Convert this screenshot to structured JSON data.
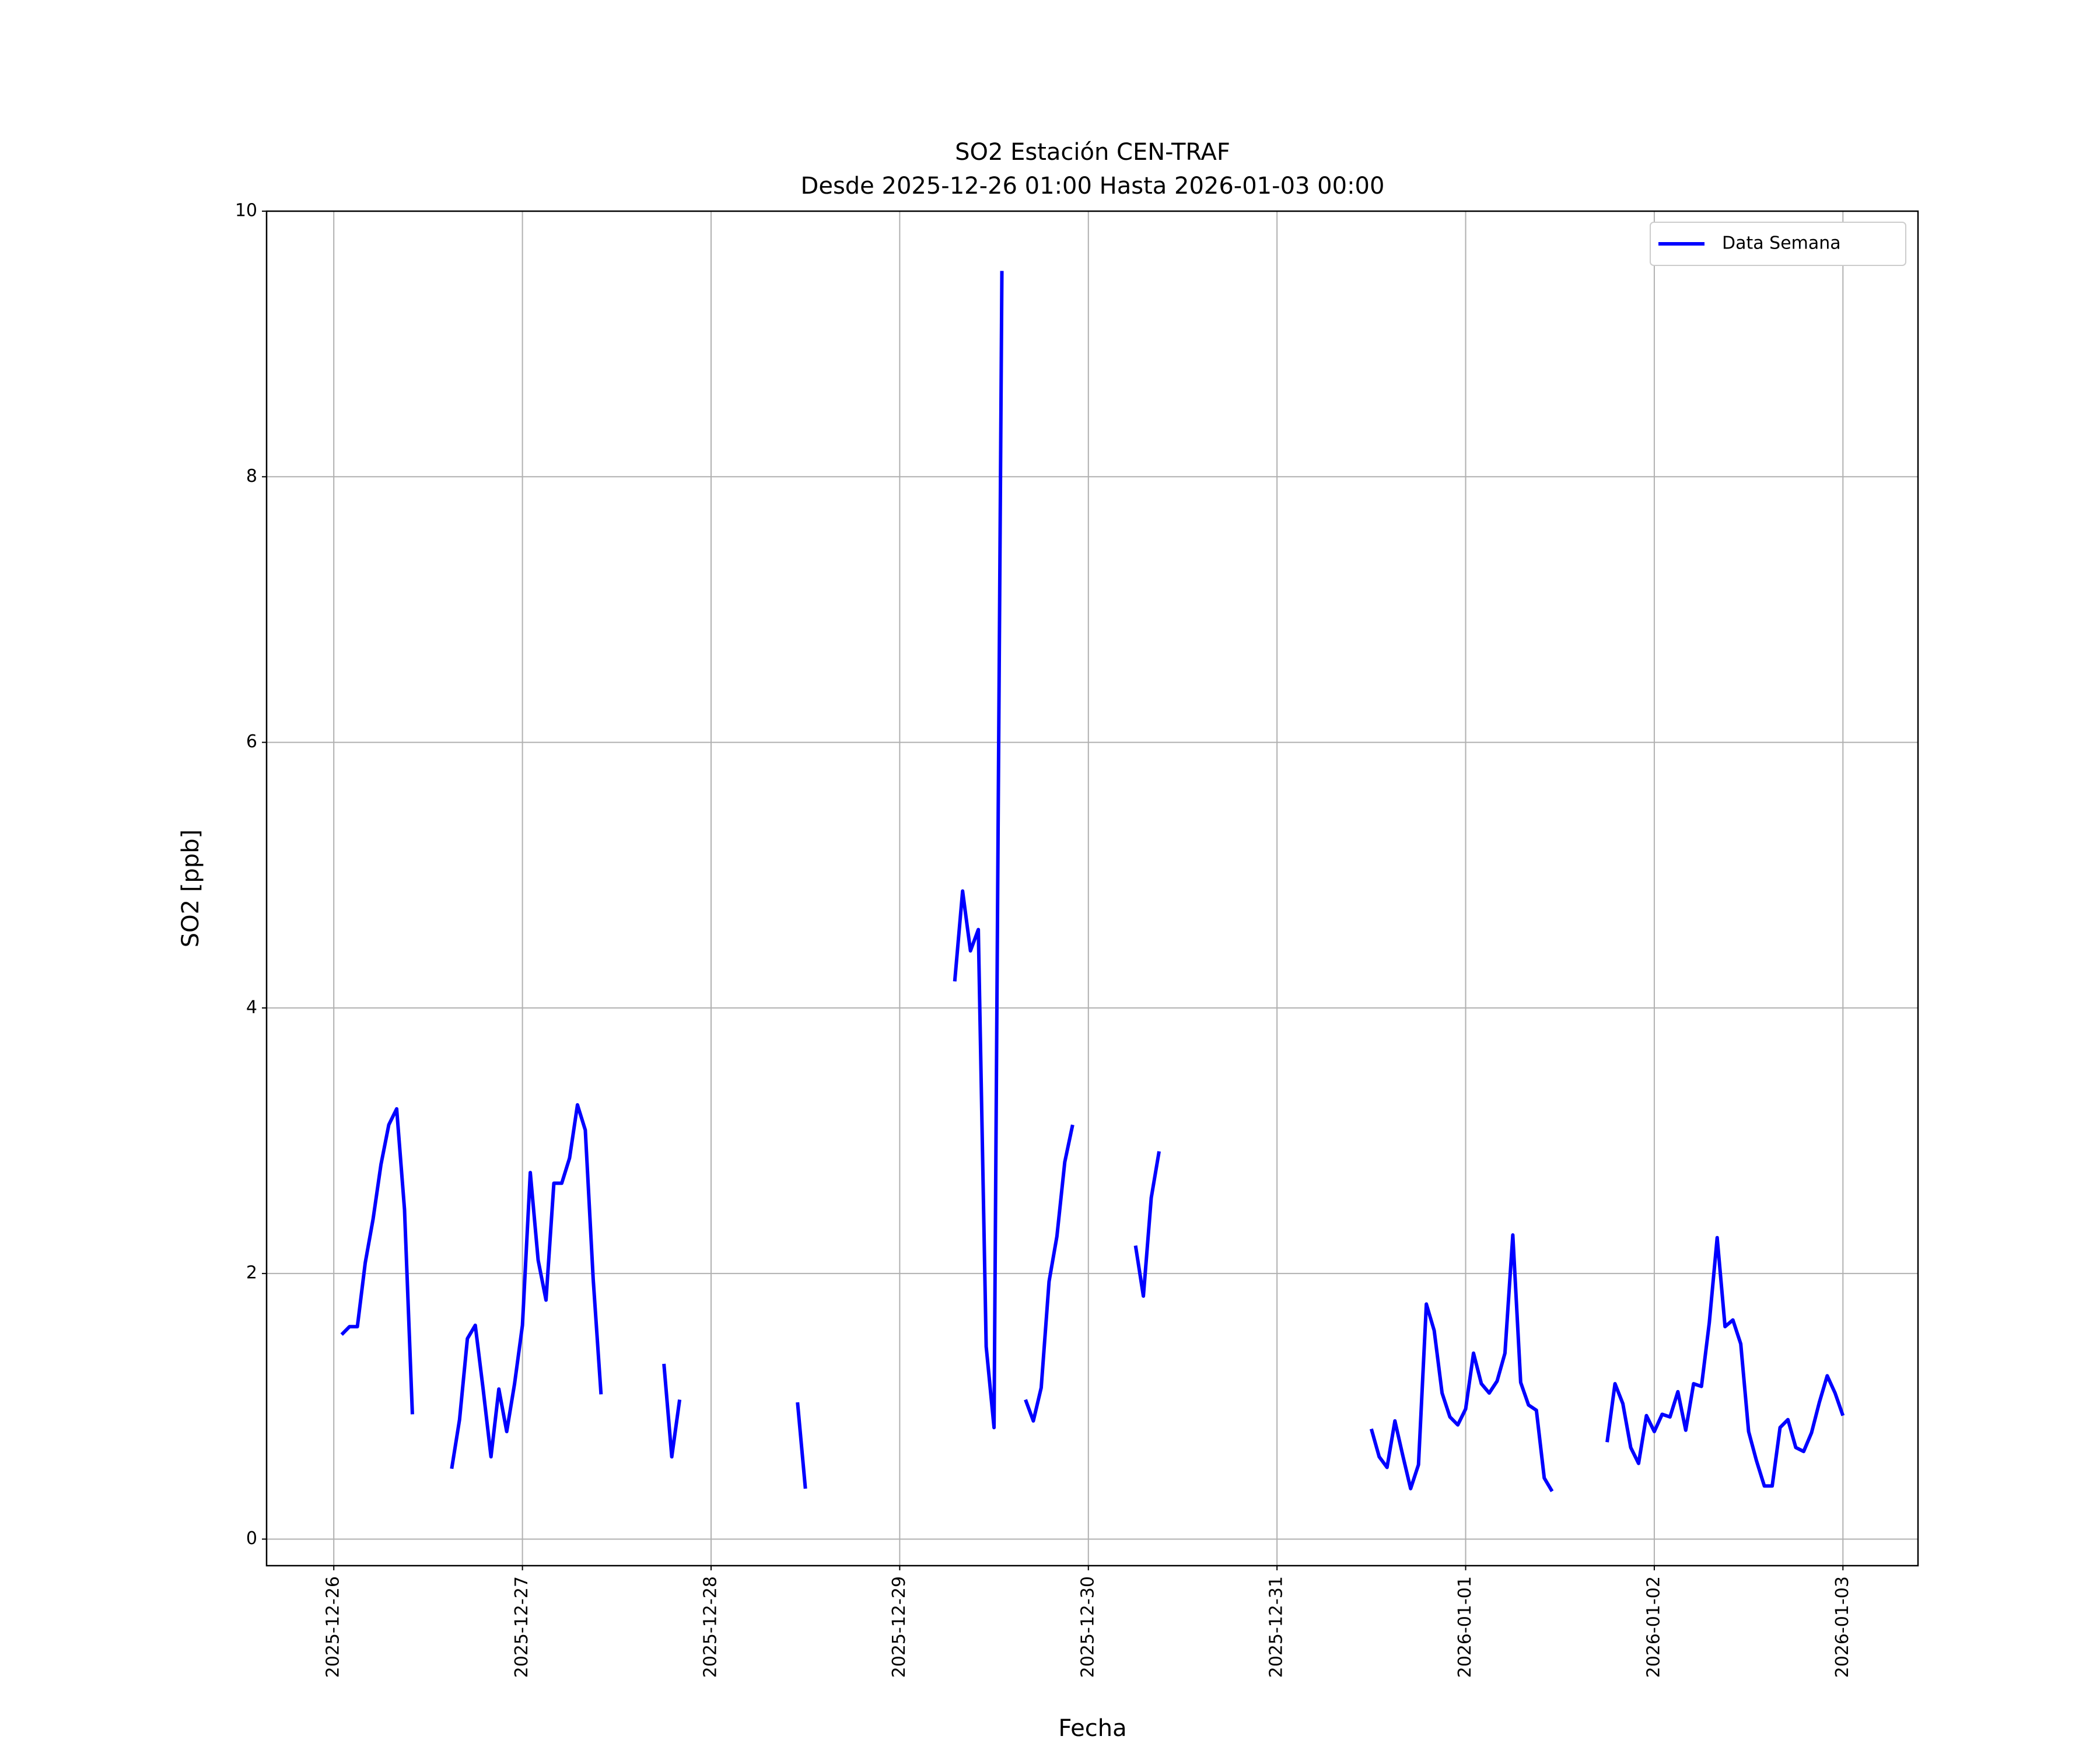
{
  "chart_data": {
    "type": "line",
    "title": "SO2 Estación CEN-TRAF",
    "subtitle": "Desde 2025-12-26 01:00 Hasta 2026-01-03 00:00",
    "xlabel": "Fecha",
    "ylabel": "SO2 [ppb]",
    "x": [
      "2025-12-26 01:00",
      "2025-12-26 02:00",
      "2025-12-26 03:00",
      "2025-12-26 04:00",
      "2025-12-26 05:00",
      "2025-12-26 06:00",
      "2025-12-26 07:00",
      "2025-12-26 08:00",
      "2025-12-26 09:00",
      "2025-12-26 10:00",
      "2025-12-26 11:00",
      "2025-12-26 15:00",
      "2025-12-26 16:00",
      "2025-12-26 17:00",
      "2025-12-26 18:00",
      "2025-12-26 19:00",
      "2025-12-26 20:00",
      "2025-12-26 21:00",
      "2025-12-26 22:00",
      "2025-12-26 23:00",
      "2025-12-27 00:00",
      "2025-12-27 01:00",
      "2025-12-27 02:00",
      "2025-12-27 03:00",
      "2025-12-27 04:00",
      "2025-12-27 05:00",
      "2025-12-27 06:00",
      "2025-12-27 07:00",
      "2025-12-27 08:00",
      "2025-12-27 09:00",
      "2025-12-27 10:00",
      "2025-12-27 11:00",
      "2025-12-27 18:00",
      "2025-12-27 19:00",
      "2025-12-27 20:00",
      "2025-12-27 21:00",
      "2025-12-28 11:00",
      "2025-12-28 12:00",
      "2025-12-28 13:00",
      "2025-12-29 07:00",
      "2025-12-29 08:00",
      "2025-12-29 09:00",
      "2025-12-29 10:00",
      "2025-12-29 11:00",
      "2025-12-29 12:00",
      "2025-12-29 13:00",
      "2025-12-29 14:00",
      "2025-12-29 16:00",
      "2025-12-29 17:00",
      "2025-12-29 18:00",
      "2025-12-29 19:00",
      "2025-12-29 20:00",
      "2025-12-29 21:00",
      "2025-12-29 22:00",
      "2025-12-29 23:00",
      "2025-12-30 06:00",
      "2025-12-30 07:00",
      "2025-12-30 08:00",
      "2025-12-30 09:00",
      "2025-12-30 10:00",
      "2025-12-31 12:00",
      "2025-12-31 13:00",
      "2025-12-31 14:00",
      "2025-12-31 15:00",
      "2025-12-31 16:00",
      "2025-12-31 17:00",
      "2025-12-31 18:00",
      "2025-12-31 19:00",
      "2025-12-31 20:00",
      "2025-12-31 21:00",
      "2025-12-31 22:00",
      "2025-12-31 23:00",
      "2026-01-01 00:00",
      "2026-01-01 01:00",
      "2026-01-01 02:00",
      "2026-01-01 03:00",
      "2026-01-01 04:00",
      "2026-01-01 05:00",
      "2026-01-01 06:00",
      "2026-01-01 07:00",
      "2026-01-01 08:00",
      "2026-01-01 09:00",
      "2026-01-01 10:00",
      "2026-01-01 11:00",
      "2026-01-01 12:00",
      "2026-01-01 18:00",
      "2026-01-01 19:00",
      "2026-01-01 20:00",
      "2026-01-01 21:00",
      "2026-01-01 22:00",
      "2026-01-01 23:00",
      "2026-01-02 00:00",
      "2026-01-02 01:00",
      "2026-01-02 02:00",
      "2026-01-02 03:00",
      "2026-01-02 04:00",
      "2026-01-02 05:00",
      "2026-01-02 06:00",
      "2026-01-02 07:00",
      "2026-01-02 08:00",
      "2026-01-02 09:00",
      "2026-01-02 10:00",
      "2026-01-02 11:00",
      "2026-01-02 12:00",
      "2026-01-02 13:00",
      "2026-01-02 14:00",
      "2026-01-02 15:00",
      "2026-01-02 16:00",
      "2026-01-02 17:00",
      "2026-01-02 18:00",
      "2026-01-02 19:00",
      "2026-01-02 20:00",
      "2026-01-02 21:00",
      "2026-01-02 22:00",
      "2026-01-02 23:00",
      "2026-01-03 00:00"
    ],
    "series": [
      {
        "name": "Data Semana",
        "color": "#0000ff",
        "values": [
          1.54,
          1.6,
          1.6,
          2.08,
          2.41,
          2.82,
          3.12,
          3.24,
          2.48,
          0.94,
          null,
          0.53,
          0.9,
          1.51,
          1.61,
          1.13,
          0.62,
          1.13,
          0.81,
          1.17,
          1.61,
          2.76,
          2.1,
          1.8,
          2.68,
          2.68,
          2.87,
          3.27,
          3.08,
          1.96,
          1.09,
          null,
          1.32,
          0.62,
          1.05,
          null,
          1.03,
          0.38,
          null,
          4.2,
          4.88,
          4.43,
          4.59,
          1.45,
          0.84,
          9.55,
          null,
          1.05,
          0.89,
          1.14,
          1.94,
          2.28,
          2.84,
          3.12,
          null,
          2.21,
          1.83,
          2.57,
          2.92,
          null,
          0.83,
          0.62,
          0.54,
          0.89,
          0.63,
          0.38,
          0.56,
          1.77,
          1.57,
          1.1,
          0.92,
          0.86,
          0.98,
          1.4,
          1.17,
          1.1,
          1.19,
          1.4,
          2.29,
          1.18,
          1.01,
          0.97,
          0.46,
          0.36,
          null,
          0.73,
          1.17,
          1.02,
          0.69,
          0.57,
          0.93,
          0.81,
          0.94,
          0.92,
          1.11,
          0.82,
          1.17,
          1.15,
          1.63,
          2.27,
          1.6,
          1.65,
          1.47,
          0.81,
          0.59,
          0.4,
          0.4,
          0.84,
          0.9,
          0.69,
          0.66,
          0.8,
          1.03,
          1.23,
          1.1,
          0.93
        ]
      }
    ],
    "xlim": [
      "2025-12-25 15:27",
      "2026-01-03 09:33"
    ],
    "xticks": [
      "2025-12-26",
      "2025-12-27",
      "2025-12-28",
      "2025-12-29",
      "2025-12-30",
      "2025-12-31",
      "2026-01-01",
      "2026-01-02",
      "2026-01-03"
    ],
    "ylim": [
      -0.2,
      10
    ],
    "yticks": [
      0,
      2,
      4,
      6,
      8,
      10
    ],
    "grid": true,
    "legend": "upper right"
  }
}
